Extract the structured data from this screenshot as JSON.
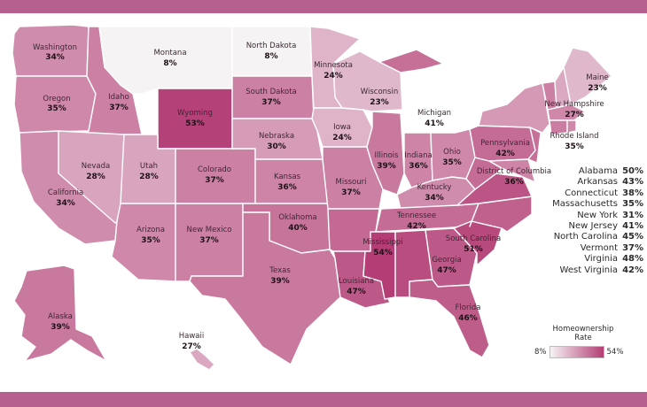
{
  "colors": {
    "frame": "#b5608e",
    "scale_low": "#f6f3f5",
    "scale_high": "#b33d74"
  },
  "range": {
    "min": 8,
    "max": 54
  },
  "states": [
    {
      "id": "washington",
      "name": "Washington",
      "value": "34%",
      "pct": 34
    },
    {
      "id": "oregon",
      "name": "Oregon",
      "value": "35%",
      "pct": 35
    },
    {
      "id": "california",
      "name": "California",
      "value": "34%",
      "pct": 34
    },
    {
      "id": "idaho",
      "name": "Idaho",
      "value": "37%",
      "pct": 37
    },
    {
      "id": "nevada",
      "name": "Nevada",
      "value": "28%",
      "pct": 28
    },
    {
      "id": "montana",
      "name": "Montana",
      "value": "8%",
      "pct": 8
    },
    {
      "id": "wyoming",
      "name": "Wyoming",
      "value": "53%",
      "pct": 53
    },
    {
      "id": "utah",
      "name": "Utah",
      "value": "28%",
      "pct": 28
    },
    {
      "id": "arizona",
      "name": "Arizona",
      "value": "35%",
      "pct": 35
    },
    {
      "id": "colorado",
      "name": "Colorado",
      "value": "37%",
      "pct": 37
    },
    {
      "id": "newmexico",
      "name": "New Mexico",
      "value": "37%",
      "pct": 37
    },
    {
      "id": "northdakota",
      "name": "North Dakota",
      "value": "8%",
      "pct": 8
    },
    {
      "id": "southdakota",
      "name": "South Dakota",
      "value": "37%",
      "pct": 37
    },
    {
      "id": "nebraska",
      "name": "Nebraska",
      "value": "30%",
      "pct": 30
    },
    {
      "id": "kansas",
      "name": "Kansas",
      "value": "36%",
      "pct": 36
    },
    {
      "id": "oklahoma",
      "name": "Oklahoma",
      "value": "40%",
      "pct": 40
    },
    {
      "id": "texas",
      "name": "Texas",
      "value": "39%",
      "pct": 39
    },
    {
      "id": "minnesota",
      "name": "Minnesota",
      "value": "24%",
      "pct": 24
    },
    {
      "id": "iowa",
      "name": "Iowa",
      "value": "24%",
      "pct": 24
    },
    {
      "id": "missouri",
      "name": "Missouri",
      "value": "37%",
      "pct": 37
    },
    {
      "id": "arkansas",
      "name": "",
      "value": "",
      "pct": 43
    },
    {
      "id": "louisiana",
      "name": "Louisiana",
      "value": "47%",
      "pct": 47
    },
    {
      "id": "wisconsin",
      "name": "Wisconsin",
      "value": "23%",
      "pct": 23
    },
    {
      "id": "illinois",
      "name": "Illinois",
      "value": "39%",
      "pct": 39
    },
    {
      "id": "michigan",
      "name": "Michigan",
      "value": "41%",
      "pct": 41
    },
    {
      "id": "indiana",
      "name": "Indiana",
      "value": "36%",
      "pct": 36
    },
    {
      "id": "ohio",
      "name": "Ohio",
      "value": "35%",
      "pct": 35
    },
    {
      "id": "kentucky",
      "name": "Kentucky",
      "value": "34%",
      "pct": 34
    },
    {
      "id": "tennessee",
      "name": "Tennessee",
      "value": "42%",
      "pct": 42
    },
    {
      "id": "mississippi",
      "name": "Mississippi",
      "value": "54%",
      "pct": 54
    },
    {
      "id": "alabama",
      "name": "",
      "value": "",
      "pct": 50
    },
    {
      "id": "georgia",
      "name": "Georgia",
      "value": "47%",
      "pct": 47
    },
    {
      "id": "florida",
      "name": "Florida",
      "value": "46%",
      "pct": 46
    },
    {
      "id": "southcarolina",
      "name": "South Carolina",
      "value": "51%",
      "pct": 51
    },
    {
      "id": "northcarolina",
      "name": "",
      "value": "",
      "pct": 45
    },
    {
      "id": "virginia",
      "name": "",
      "value": "",
      "pct": 48
    },
    {
      "id": "westvirginia",
      "name": "",
      "value": "",
      "pct": 42
    },
    {
      "id": "pennsylvania",
      "name": "Pennsylvania",
      "value": "42%",
      "pct": 42
    },
    {
      "id": "newyork",
      "name": "",
      "value": "",
      "pct": 31
    },
    {
      "id": "dc",
      "name": "District of Columbia",
      "value": "36%",
      "pct": 36
    },
    {
      "id": "maine",
      "name": "Maine",
      "value": "23%",
      "pct": 23
    },
    {
      "id": "newhampshire",
      "name": "New Hampshire",
      "value": "27%",
      "pct": 27
    },
    {
      "id": "vermont",
      "name": "",
      "value": "",
      "pct": 37
    },
    {
      "id": "massachusetts",
      "name": "",
      "value": "",
      "pct": 35
    },
    {
      "id": "connecticut",
      "name": "",
      "value": "",
      "pct": 38
    },
    {
      "id": "newjersey",
      "name": "",
      "value": "",
      "pct": 41
    },
    {
      "id": "rhodeisland",
      "name": "Rhode Island",
      "value": "35%",
      "pct": 35
    },
    {
      "id": "alaska",
      "name": "Alaska",
      "value": "39%",
      "pct": 39
    },
    {
      "id": "hawaii",
      "name": "Hawaii",
      "value": "27%",
      "pct": 27
    }
  ],
  "side_list": [
    {
      "name": "Alabama",
      "value": "50%"
    },
    {
      "name": "Arkansas",
      "value": "43%"
    },
    {
      "name": "Connecticut",
      "value": "38%"
    },
    {
      "name": "Massachusetts",
      "value": "35%"
    },
    {
      "name": "New York",
      "value": "31%"
    },
    {
      "name": "New Jersey",
      "value": "41%"
    },
    {
      "name": "North Carolina",
      "value": "45%"
    },
    {
      "name": "Vermont",
      "value": "37%"
    },
    {
      "name": "Virginia",
      "value": "48%"
    },
    {
      "name": "West Virginia",
      "value": "42%"
    }
  ],
  "legend": {
    "title_line1": "Homeownership",
    "title_line2": "Rate",
    "min_label": "8%",
    "max_label": "54%"
  }
}
